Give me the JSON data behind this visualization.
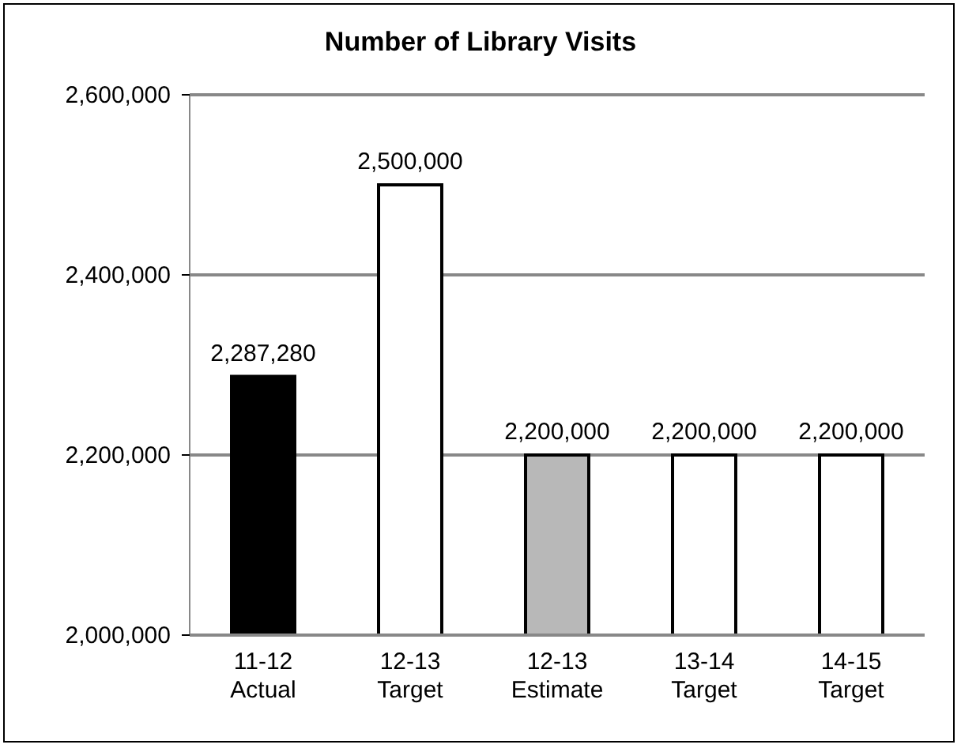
{
  "chart_data": {
    "type": "bar",
    "title": "Number of Library Visits",
    "categories": [
      "11-12\nActual",
      "12-13\nTarget",
      "12-13\nEstimate",
      "13-14\nTarget",
      "14-15\nTarget"
    ],
    "values": [
      2287280,
      2500000,
      2200000,
      2200000,
      2200000
    ],
    "colors": [
      "#000000",
      "#ffffff",
      "#b8b8b8",
      "#ffffff",
      "#ffffff"
    ],
    "ylim": [
      2000000,
      2600000
    ],
    "yticks": [
      {
        "value": 2000000,
        "label": "2,000,000"
      },
      {
        "value": 2200000,
        "label": "2,200,000"
      },
      {
        "value": 2400000,
        "label": "2,400,000"
      },
      {
        "value": 2600000,
        "label": "2,600,000"
      }
    ],
    "value_labels": [
      "2,287,280",
      "2,500,000",
      "2,200,000",
      "2,200,000",
      "2,200,000"
    ],
    "grid": "y"
  }
}
